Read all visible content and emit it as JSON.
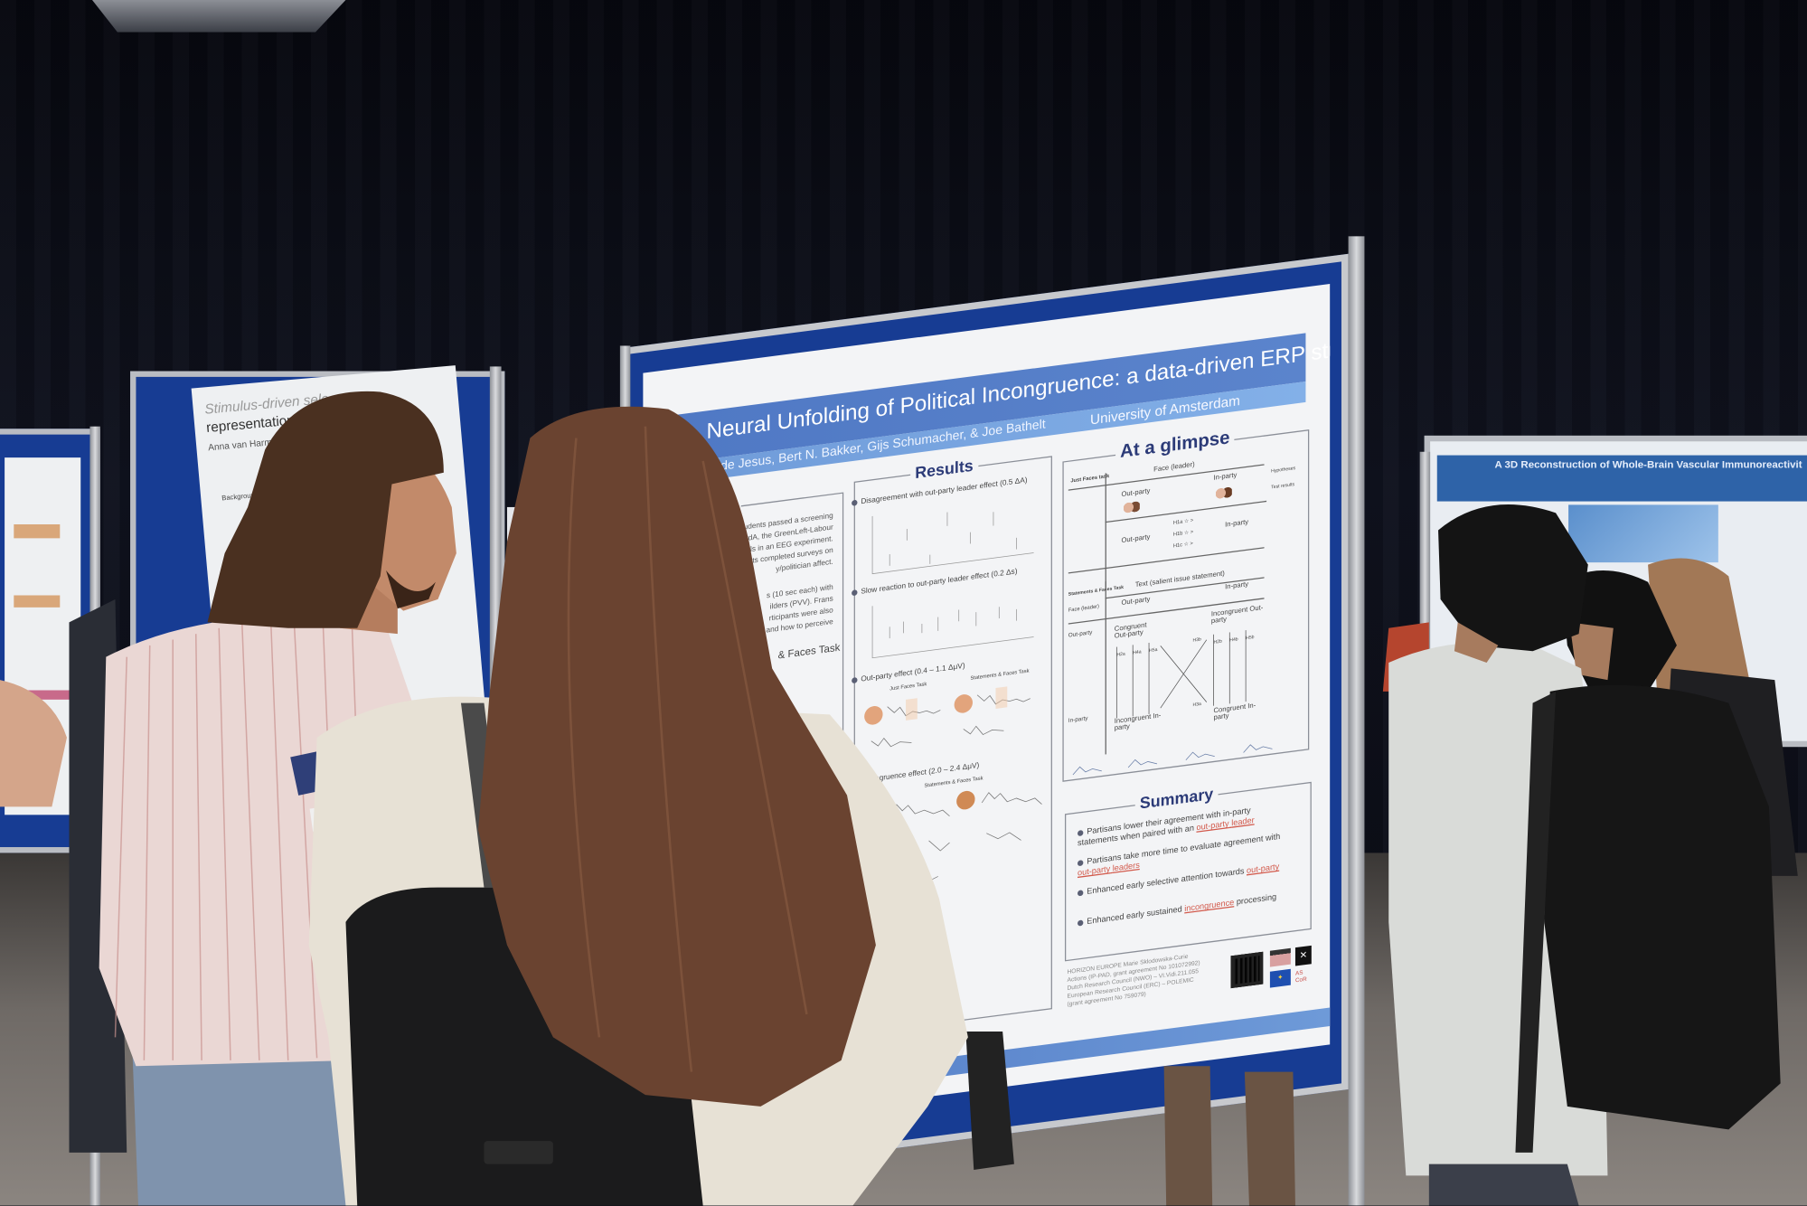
{
  "scene": {
    "colors": {
      "curtain": "#0c0e18",
      "board_blue": "#173c93",
      "poster_title_band": "#4f78c4",
      "highlight": "#d2584a"
    }
  },
  "left_poster": {
    "title_line1": "Stimulus-driven sele",
    "title_line2": "representations in v",
    "authors": "Anna van Harmelen, Lau",
    "section": "Background"
  },
  "right_poster": {
    "title": "A 3D Reconstruction of Whole-Brain Vascular Immunoreactivit"
  },
  "main_poster": {
    "title": "Neural Unfolding of Political Incongruence: a data-driven ERP study",
    "authors": "to de Jesus, Bert N. Bakker, Gijs Schumacher, & Joe Bathelt",
    "affiliation": "University of Amsterdam",
    "procedure": {
      "heading": "dure",
      "lines": [
        "udents passed a screening",
        "PvdA, the GreenLeft-Labour",
        "pals in an EEG experiment.",
        "nts completed surveys on",
        "y/politician affect.",
        "s (10 sec each) with",
        "ilders (PVV). Frans",
        "rticipants were also",
        "and how to perceive"
      ],
      "subheading": "& Faces Task"
    },
    "results": {
      "heading": "Results",
      "items": [
        "Disagreement with out-party leader effect (0.5 ΔA)",
        "Slow reaction to out-party leader effect (0.2 Δs)",
        "Out-party effect (0.4 – 1.1 ΔμV)",
        "Incongruence effect (2.0 – 2.4 ΔμV)"
      ],
      "sublabels": [
        "Just Faces Task",
        "Statements & Faces Task",
        "Statements & Faces Task"
      ]
    },
    "glimpse": {
      "heading": "At a glimpse",
      "t1_task": "Just Faces task",
      "t1_header": "Face (leader)",
      "t1_outparty": "Out-party",
      "t1_inparty": "In-party",
      "t1_row_outparty": "Out-party",
      "t1_row_inparty": "In-party",
      "t1_hyp": [
        "H1a ☆ >",
        "H1b ☆ >",
        "H1c ☆ >"
      ],
      "t2_task": "Statements & Faces Task",
      "t2_header": "Text (salient issue statement)",
      "t2_face": "Face (leader)",
      "t2_outparty": "Out-party",
      "t2_inparty": "In-party",
      "t2_row_outparty": "Out-party",
      "t2_row_inparty": "In-party",
      "congruent_out": "Congruent Out-party",
      "incongruent_out": "Incongruent Out-party",
      "incongruent_in": "Incongruent In-party",
      "congruent_in": "Congruent In-party",
      "t2_hyp_left": [
        "H2a",
        "H4a",
        "H5a"
      ],
      "t2_hyp_right": [
        "H2b",
        "H4b",
        "H5b"
      ],
      "h3b": "H3b",
      "h3a": "H3a",
      "legend_hyp": "Hypotheses",
      "legend_test": "Test results"
    },
    "summary": {
      "heading": "Summary",
      "bullets": [
        {
          "pre": "Partisans lower their agreement with in-party statements when paired with an ",
          "hl": "out-party leader",
          "post": ""
        },
        {
          "pre": "Partisans take more time to evaluate agreement with ",
          "hl": "out-party leaders",
          "post": ""
        },
        {
          "pre": "Enhanced early selective attention towards ",
          "hl": "out-party",
          "post": ""
        },
        {
          "pre": "Enhanced early sustained ",
          "hl": "incongruence",
          "post": " processing"
        }
      ]
    },
    "funding": [
      "HORIZON EUROPE Marie Sklodowska-Curie",
      "Actions (IP-PAD, grant agreement No 101072992)",
      "Dutch Research Council (NWO) – VI.Vidi.211.055",
      "European Research Council (ERC) – POLEMIC",
      "(grant agreement No 759079)"
    ],
    "logo_ascor": "AS CoR"
  }
}
